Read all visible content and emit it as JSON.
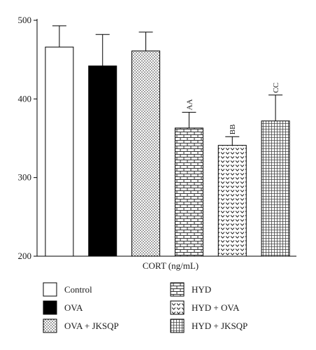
{
  "chart_data": {
    "type": "bar",
    "title": "",
    "xlabel": "CORT (ng/mL)",
    "ylabel": "",
    "ylim": [
      200,
      500
    ],
    "yticks": [
      200,
      300,
      400,
      500
    ],
    "grid": false,
    "legend_position": "bottom",
    "categories": [
      "Control",
      "OVA",
      "OVA + JKSQP",
      "HYD",
      "HYD + OVA",
      "HYD + JKSQP"
    ],
    "values": [
      466,
      442,
      461,
      363,
      341,
      372
    ],
    "errors": [
      27,
      40,
      24,
      20,
      11,
      33
    ],
    "significance": [
      "",
      "",
      "",
      "AA",
      "BB",
      "CC"
    ],
    "patterns": [
      "white",
      "black",
      "dots",
      "bricks",
      "chevrons",
      "grid"
    ],
    "legend": [
      "Control",
      "OVA",
      "OVA + JKSQP",
      "HYD",
      "HYD + OVA",
      "HYD + JKSQP"
    ]
  }
}
